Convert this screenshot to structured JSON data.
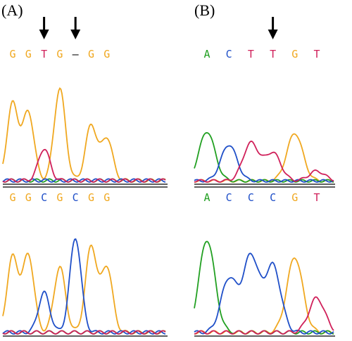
{
  "colors": {
    "A": "#22a022",
    "C": "#1f4fc8",
    "G": "#f0a820",
    "T": "#d0205a",
    "gap": "#000000",
    "baseline": "#000000"
  },
  "panels": [
    {
      "label": "(A)",
      "top_sequence": [
        "G",
        "G",
        "T",
        "G",
        "–",
        "G",
        "G"
      ],
      "top_arrows": [
        2,
        4
      ],
      "bottom_sequence": [
        "G",
        "G",
        "C",
        "G",
        "C",
        "G",
        "G"
      ],
      "trace_top": [
        {
          "base": "G",
          "pos": 0,
          "height": 0.72
        },
        {
          "base": "G",
          "pos": 1,
          "height": 0.64
        },
        {
          "base": "T",
          "pos": 2,
          "height": 0.3
        },
        {
          "base": "G",
          "pos": 3,
          "height": 0.86
        },
        {
          "base": "G",
          "pos": 5,
          "height": 0.52
        },
        {
          "base": "G",
          "pos": 6,
          "height": 0.4
        }
      ],
      "trace_bottom": [
        {
          "base": "G",
          "pos": 0,
          "height": 0.7
        },
        {
          "base": "G",
          "pos": 1,
          "height": 0.72
        },
        {
          "base": "C",
          "pos": 2,
          "height": 0.37
        },
        {
          "base": "G",
          "pos": 3,
          "height": 0.61
        },
        {
          "base": "C",
          "pos": 4,
          "height": 0.88
        },
        {
          "base": "G",
          "pos": 5,
          "height": 0.8
        },
        {
          "base": "G",
          "pos": 6,
          "height": 0.61
        }
      ]
    },
    {
      "label": "(B)",
      "top_sequence": [
        "A",
        "C",
        "T",
        "T",
        "G",
        "T"
      ],
      "top_arrows": [
        3
      ],
      "bottom_sequence": [
        "A",
        "C",
        "C",
        "C",
        "G",
        "T"
      ],
      "trace_top": [
        {
          "base": "A",
          "pos": 0,
          "height": 0.6
        },
        {
          "base": "C",
          "pos": 1,
          "height": 0.44
        },
        {
          "base": "T",
          "pos": 2,
          "height": 0.46
        },
        {
          "base": "T",
          "pos": 3,
          "height": 0.34
        },
        {
          "base": "G",
          "pos": 4,
          "height": 0.58
        },
        {
          "base": "T",
          "pos": 5,
          "height": 0.12
        }
      ],
      "trace_bottom": [
        {
          "base": "A",
          "pos": 0,
          "height": 0.86
        },
        {
          "base": "C",
          "pos": 1,
          "height": 0.5
        },
        {
          "base": "C",
          "pos": 2,
          "height": 0.71
        },
        {
          "base": "C",
          "pos": 3,
          "height": 0.62
        },
        {
          "base": "G",
          "pos": 4,
          "height": 0.7
        },
        {
          "base": "T",
          "pos": 5,
          "height": 0.32
        }
      ]
    }
  ]
}
